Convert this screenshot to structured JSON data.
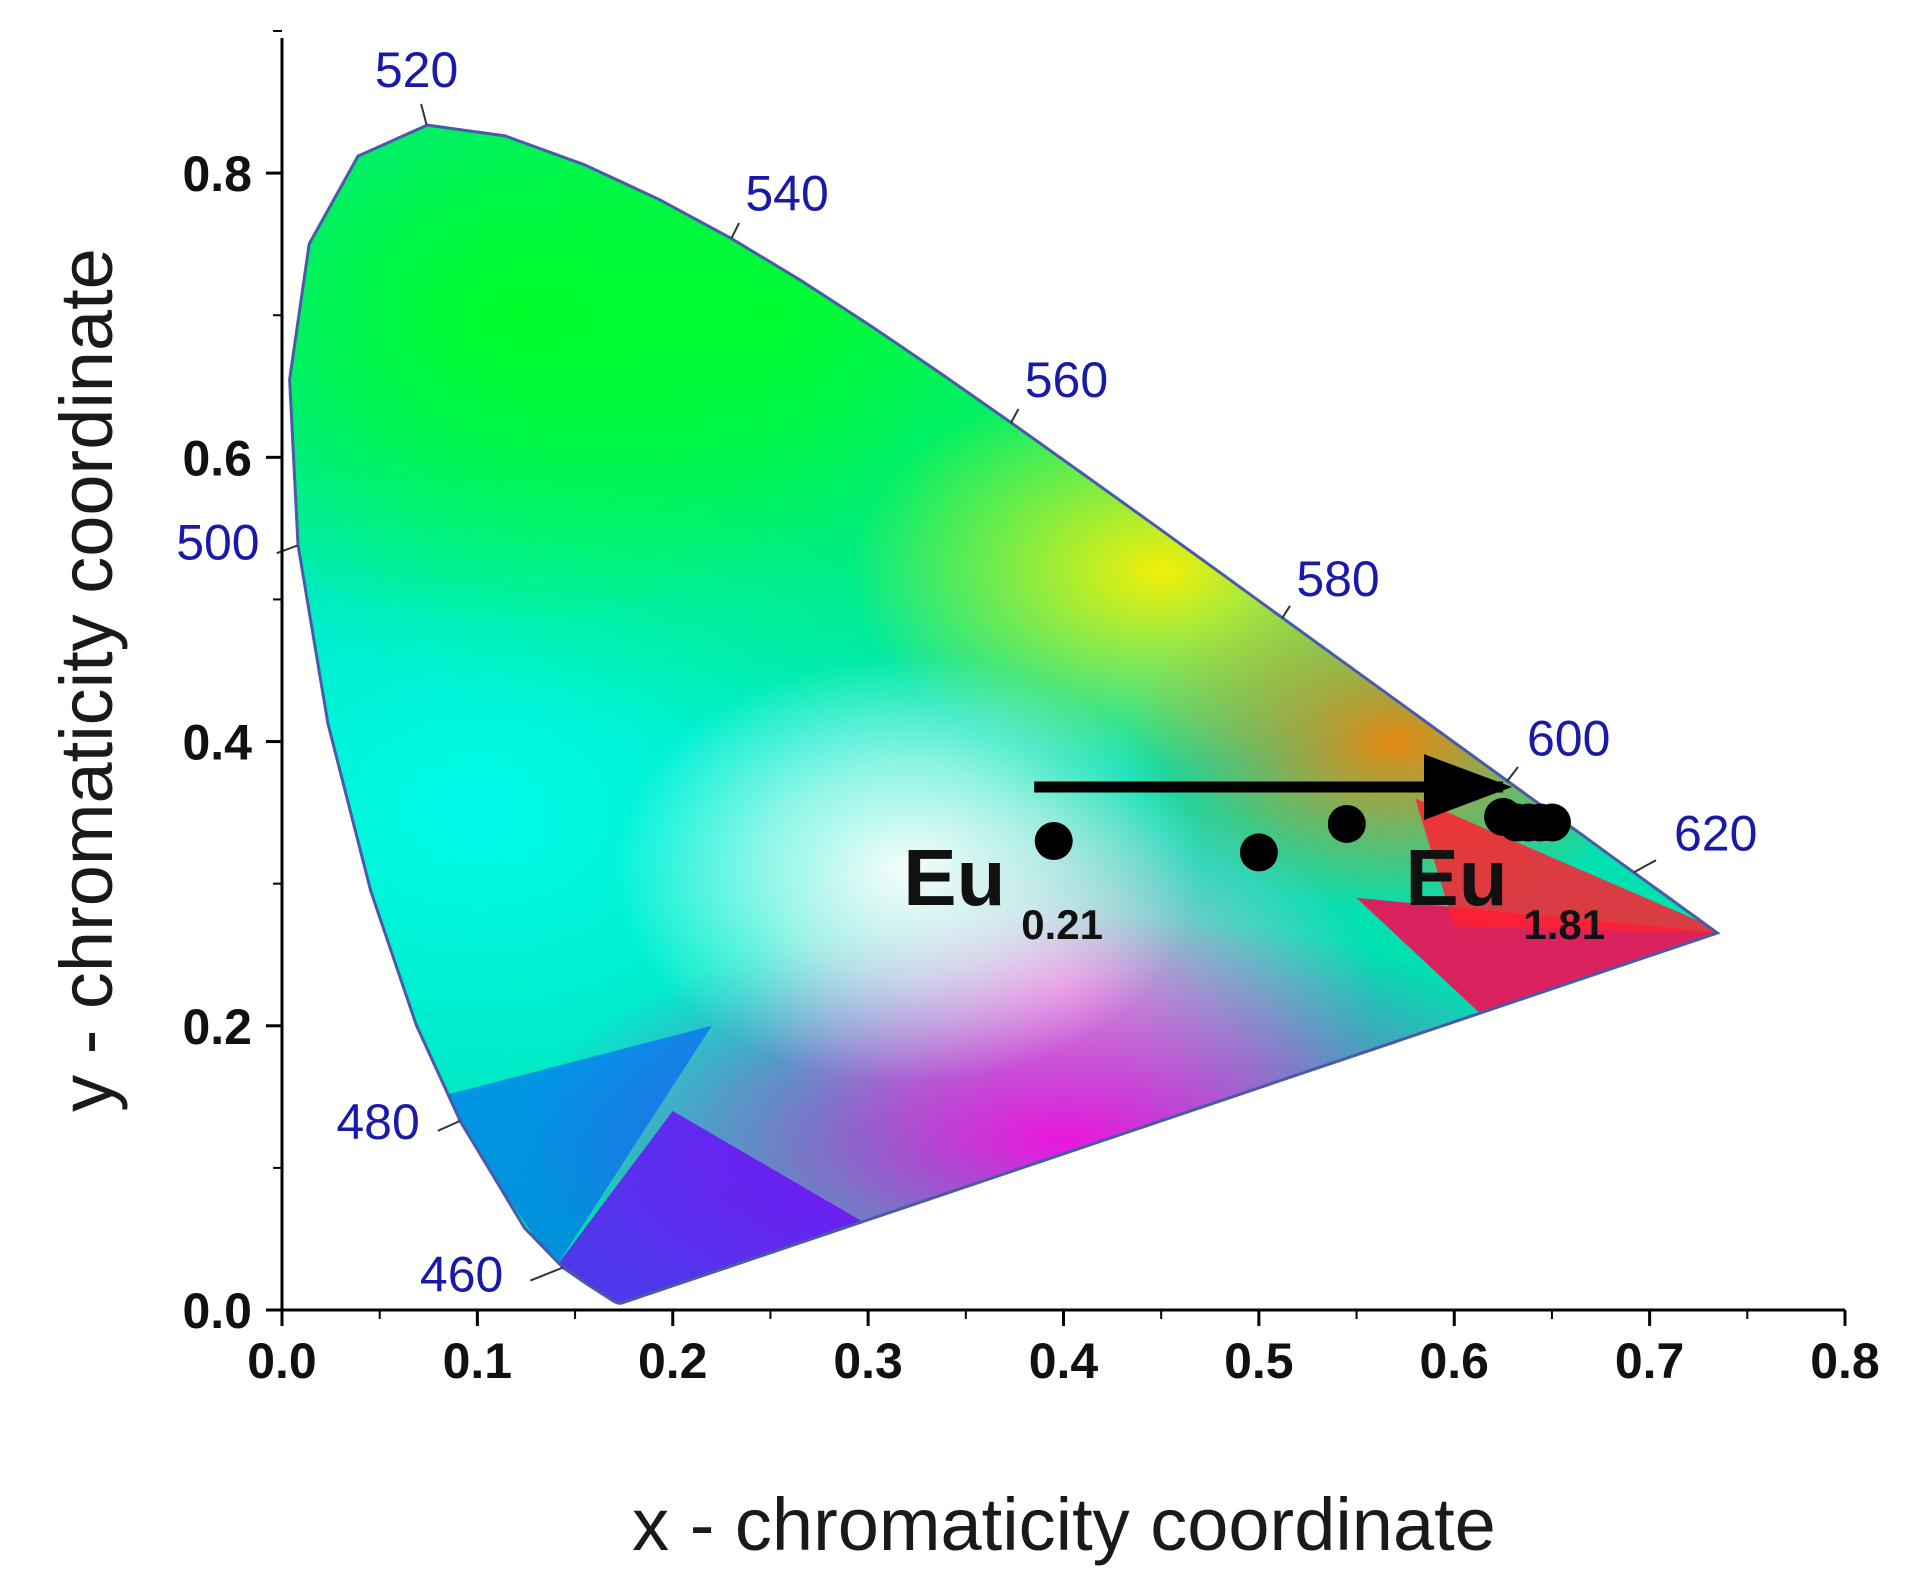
{
  "chart_data": {
    "type": "scatter",
    "title": "",
    "xlabel": "x - chromaticity coordinate",
    "ylabel": "y - chromaticity coordinate",
    "xlim": [
      0.0,
      0.8
    ],
    "ylim": [
      0.0,
      0.9
    ],
    "x_ticks": [
      "0.0",
      "0.1",
      "0.2",
      "0.3",
      "0.4",
      "0.5",
      "0.6",
      "0.7",
      "0.8"
    ],
    "y_ticks": [
      "0.0",
      "0.2",
      "0.4",
      "0.6",
      "0.8"
    ],
    "grid": false,
    "background_curve": "CIE 1931 spectral locus",
    "wavelength_labels": [
      {
        "text": "460",
        "x": 0.144,
        "y": 0.03
      },
      {
        "text": "480",
        "x": 0.091,
        "y": 0.133
      },
      {
        "text": "500",
        "x": 0.008,
        "y": 0.538
      },
      {
        "text": "520",
        "x": 0.074,
        "y": 0.834
      },
      {
        "text": "540",
        "x": 0.23,
        "y": 0.754
      },
      {
        "text": "560",
        "x": 0.373,
        "y": 0.624
      },
      {
        "text": "580",
        "x": 0.512,
        "y": 0.487
      },
      {
        "text": "600",
        "x": 0.627,
        "y": 0.372
      },
      {
        "text": "620",
        "x": 0.692,
        "y": 0.308
      }
    ],
    "points": [
      {
        "x": 0.395,
        "y": 0.33
      },
      {
        "x": 0.5,
        "y": 0.322
      },
      {
        "x": 0.545,
        "y": 0.342
      },
      {
        "x": 0.625,
        "y": 0.347
      },
      {
        "x": 0.632,
        "y": 0.343
      },
      {
        "x": 0.638,
        "y": 0.343
      },
      {
        "x": 0.644,
        "y": 0.343
      },
      {
        "x": 0.65,
        "y": 0.343
      }
    ],
    "arrow": {
      "from": {
        "x": 0.385,
        "y": 0.368
      },
      "to": {
        "x": 0.625,
        "y": 0.368
      }
    },
    "annotations": [
      {
        "main": "Eu",
        "sub": "0.21",
        "x": 0.318,
        "y": 0.285
      },
      {
        "main": "Eu",
        "sub": "1.81",
        "x": 0.575,
        "y": 0.285
      }
    ],
    "colors": {
      "points": "#000000",
      "wavelength_labels": "#1a1aa8",
      "axes": "#000000"
    }
  }
}
